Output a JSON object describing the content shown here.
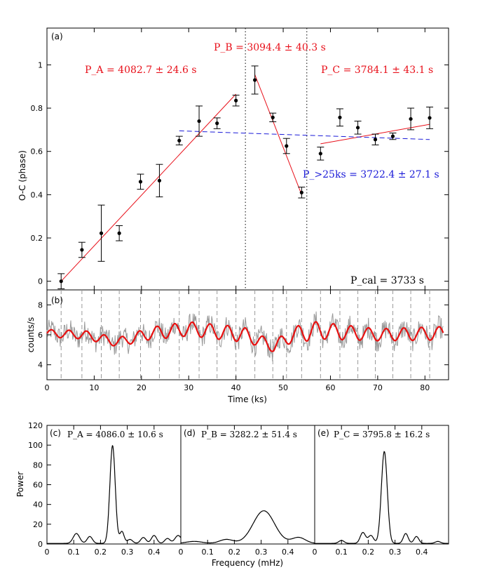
{
  "colors": {
    "fit": "#e8101a",
    "fit_all": "#1a1ad8",
    "lc_raw": "#9a9a9a",
    "lc_model": "#e81010",
    "marker": "#000000",
    "grid": "#999999"
  },
  "chart_data": [
    {
      "panel": "(a)",
      "type": "scatter",
      "xlabel": "Time (ks)",
      "ylabel": "O-C (phase)",
      "xlim": [
        0,
        85
      ],
      "ylim": [
        -0.04,
        1.17
      ],
      "xticks": [
        0,
        10,
        20,
        30,
        40,
        50,
        60,
        70,
        80
      ],
      "yticks": [
        0,
        0.2,
        0.4,
        0.6,
        0.8,
        1
      ],
      "ytick_labels": [
        "0",
        "0.2",
        "0.4",
        "0.6",
        "0.8",
        "1"
      ],
      "points": [
        {
          "x": 3.0,
          "y": 0.0,
          "err": 0.035
        },
        {
          "x": 7.4,
          "y": 0.145,
          "err": 0.035
        },
        {
          "x": 11.5,
          "y": 0.222,
          "err": 0.13
        },
        {
          "x": 15.3,
          "y": 0.222,
          "err": 0.035
        },
        {
          "x": 19.8,
          "y": 0.46,
          "err": 0.035
        },
        {
          "x": 23.8,
          "y": 0.465,
          "err": 0.075
        },
        {
          "x": 28.0,
          "y": 0.65,
          "err": 0.02
        },
        {
          "x": 32.2,
          "y": 0.74,
          "err": 0.07
        },
        {
          "x": 36.0,
          "y": 0.73,
          "err": 0.025
        },
        {
          "x": 40.0,
          "y": 0.835,
          "err": 0.025
        },
        {
          "x": 44.0,
          "y": 0.93,
          "err": 0.065
        },
        {
          "x": 47.8,
          "y": 0.757,
          "err": 0.02
        },
        {
          "x": 50.7,
          "y": 0.625,
          "err": 0.035
        },
        {
          "x": 53.9,
          "y": 0.41,
          "err": 0.025
        },
        {
          "x": 57.9,
          "y": 0.59,
          "err": 0.03
        },
        {
          "x": 62.0,
          "y": 0.757,
          "err": 0.04
        },
        {
          "x": 65.8,
          "y": 0.71,
          "err": 0.03
        },
        {
          "x": 69.5,
          "y": 0.655,
          "err": 0.025
        },
        {
          "x": 73.2,
          "y": 0.67,
          "err": 0.015
        },
        {
          "x": 77.0,
          "y": 0.75,
          "err": 0.05
        },
        {
          "x": 81.0,
          "y": 0.755,
          "err": 0.05
        }
      ],
      "fits": [
        {
          "name": "A",
          "style": "solid",
          "x": [
            3.0,
            40.0
          ],
          "y": [
            0.0,
            0.865
          ]
        },
        {
          "name": "B",
          "style": "solid",
          "x": [
            44.0,
            53.9
          ],
          "y": [
            0.955,
            0.4
          ]
        },
        {
          "name": "C",
          "style": "solid",
          "x": [
            57.9,
            81.0
          ],
          "y": [
            0.635,
            0.725
          ]
        },
        {
          "name": ">25ks",
          "style": "dashed",
          "x": [
            28.0,
            81.0
          ],
          "y": [
            0.695,
            0.655
          ]
        }
      ],
      "vlines": [
        42.0,
        55.0
      ],
      "annotations": {
        "panel_label": "(a)",
        "pa": "P_A = 4082.7 ± 24.6 s",
        "pb": "P_B = 3094.4 ± 40.3 s",
        "pc": "P_C = 3784.1 ± 43.1 s",
        "pall": "P_>25ks = 3722.4 ± 27.1 s",
        "pcal": "P_cal = 3733 s"
      }
    },
    {
      "panel": "(b)",
      "type": "line",
      "xlabel": "Time (ks)",
      "ylabel": "counts/s",
      "xlim": [
        0,
        85
      ],
      "ylim": [
        3,
        9
      ],
      "xticks": [
        0,
        10,
        20,
        30,
        40,
        50,
        60,
        70,
        80
      ],
      "yticks": [
        4,
        6,
        8
      ],
      "vlines": [
        3.0,
        7.4,
        11.5,
        15.3,
        19.8,
        23.8,
        28.0,
        32.2,
        36.0,
        40.0,
        44.0,
        47.8,
        50.7,
        53.9,
        57.9,
        62.0,
        65.8,
        69.5,
        73.2,
        77.0,
        81.0
      ],
      "model": {
        "start": 0,
        "end": 84,
        "base": [
          [
            0,
            6.1
          ],
          [
            8,
            6.0
          ],
          [
            15,
            5.5
          ],
          [
            22,
            6.1
          ],
          [
            30,
            6.4
          ],
          [
            42,
            6.0
          ],
          [
            48,
            5.2
          ],
          [
            52,
            6.0
          ],
          [
            57,
            6.3
          ],
          [
            70,
            6.0
          ],
          [
            84,
            6.1
          ]
        ],
        "amp": [
          [
            0,
            0.25
          ],
          [
            15,
            0.3
          ],
          [
            25,
            0.45
          ],
          [
            40,
            0.5
          ],
          [
            48,
            0.35
          ],
          [
            55,
            0.6
          ],
          [
            70,
            0.4
          ],
          [
            84,
            0.45
          ]
        ],
        "period_ks": 3.73,
        "phase0": 0.0
      },
      "annotations": {
        "panel_label": "(b)"
      }
    },
    {
      "panel": "(c)",
      "type": "line",
      "xlabel": "Frequency (mHz)",
      "ylabel": "Power",
      "xlim": [
        0,
        0.5
      ],
      "ylim": [
        0,
        120
      ],
      "xticks": [
        0,
        0.1,
        0.2,
        0.3,
        0.4
      ],
      "xtick_labels": [
        "0",
        "0.1",
        "0.2",
        "0.3",
        "0.4"
      ],
      "yticks": [
        0,
        20,
        40,
        60,
        80,
        100,
        120
      ],
      "peaks": [
        [
          0.245,
          99,
          0.01
        ],
        [
          0.11,
          10,
          0.012
        ],
        [
          0.16,
          7,
          0.01
        ],
        [
          0.28,
          12,
          0.008
        ],
        [
          0.31,
          4,
          0.01
        ],
        [
          0.36,
          6,
          0.01
        ],
        [
          0.4,
          8,
          0.01
        ],
        [
          0.45,
          5,
          0.01
        ],
        [
          0.49,
          8,
          0.012
        ]
      ],
      "annotations": {
        "panel_label": "(c)",
        "period": "P_A = 4086.0 ± 10.6 s"
      }
    },
    {
      "panel": "(d)",
      "type": "line",
      "xlabel": "Frequency (mHz)",
      "ylabel": "",
      "xlim": [
        0,
        0.5
      ],
      "ylim": [
        0,
        120
      ],
      "xticks": [
        0,
        0.1,
        0.2,
        0.3,
        0.4
      ],
      "xtick_labels": [
        "0",
        "0.1",
        "0.2",
        "0.3",
        "0.4"
      ],
      "peaks": [
        [
          0.31,
          33,
          0.04
        ],
        [
          0.17,
          4,
          0.025
        ],
        [
          0.44,
          6,
          0.025
        ],
        [
          0.05,
          2,
          0.03
        ]
      ],
      "annotations": {
        "panel_label": "(d)",
        "period": "P_B = 3282.2 ± 51.4 s"
      }
    },
    {
      "panel": "(e)",
      "type": "line",
      "xlabel": "",
      "ylabel": "",
      "xlim": [
        0,
        0.5
      ],
      "ylim": [
        0,
        120
      ],
      "xticks": [
        0,
        0.1,
        0.2,
        0.3,
        0.4
      ],
      "xtick_labels": [
        "0",
        "0.1",
        "0.2",
        "0.3",
        "0.4"
      ],
      "peaks": [
        [
          0.26,
          93,
          0.011
        ],
        [
          0.18,
          11,
          0.01
        ],
        [
          0.21,
          8,
          0.01
        ],
        [
          0.34,
          10,
          0.009
        ],
        [
          0.38,
          7,
          0.009
        ],
        [
          0.1,
          3,
          0.01
        ],
        [
          0.46,
          2,
          0.01
        ]
      ],
      "annotations": {
        "panel_label": "(e)",
        "period": "P_C = 3795.8 ± 16.2 s"
      }
    }
  ],
  "bottom_xlabel": "Frequency (mHz)"
}
